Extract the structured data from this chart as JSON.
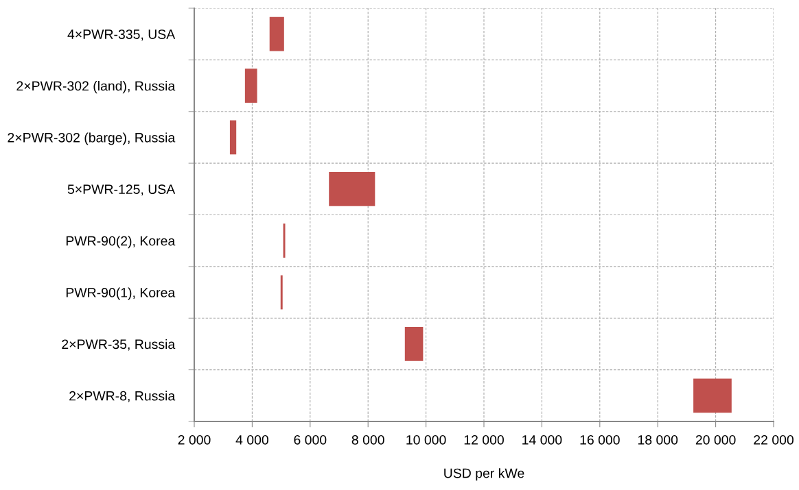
{
  "chart_data": {
    "type": "bar",
    "orientation": "horizontal",
    "xlabel": "USD per kWe",
    "categories": [
      "4×PWR-335, USA",
      "2×PWR-302 (land), Russia",
      "2×PWR-302 (barge), Russia",
      "5×PWR-125, USA",
      "PWR-90(2), Korea",
      "PWR-90(1), Korea",
      "2×PWR-35, Russia",
      "2×PWR-8, Russia"
    ],
    "base": [
      4600,
      3750,
      3230,
      6650,
      5070,
      4980,
      9270,
      19230
    ],
    "values": [
      500,
      420,
      220,
      1590,
      70,
      70,
      630,
      1320
    ],
    "color": "#c0504d",
    "xlim": [
      2000,
      22000
    ],
    "xticks": [
      {
        "value": 2000,
        "label": "2 000"
      },
      {
        "value": 4000,
        "label": "4 000"
      },
      {
        "value": 6000,
        "label": "6 000"
      },
      {
        "value": 8000,
        "label": "8 000"
      },
      {
        "value": 10000,
        "label": "10 000"
      },
      {
        "value": 12000,
        "label": "12 000"
      },
      {
        "value": 14000,
        "label": "14 000"
      },
      {
        "value": 16000,
        "label": "16 000"
      },
      {
        "value": 18000,
        "label": "18 000"
      },
      {
        "value": 20000,
        "label": "20 000"
      },
      {
        "value": 22000,
        "label": "22 000"
      }
    ],
    "grid": true
  }
}
